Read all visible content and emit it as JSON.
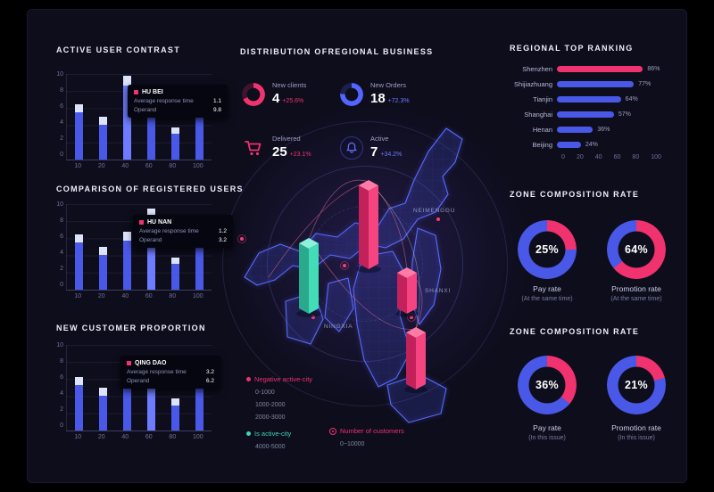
{
  "colors": {
    "pink": "#f0326e",
    "blue": "#4a58e8",
    "teal": "#3ed6b5",
    "violet": "#6b7bff"
  },
  "chart_data": [
    {
      "id": "active-user-contrast",
      "type": "bar",
      "title": "ACTIVE USER CONTRAST",
      "categories": [
        "10",
        "20",
        "40",
        "60",
        "80",
        "100"
      ],
      "values": [
        6.5,
        5,
        9.8,
        8,
        3.8,
        6.4
      ],
      "cap_values": [
        1,
        0.9,
        1.2,
        1.1,
        0.8,
        1
      ],
      "highlight": 2,
      "yticks": [
        10,
        8,
        6,
        4,
        2,
        0
      ],
      "ylim": [
        0,
        10
      ],
      "xlabel": "",
      "ylabel": "",
      "grid": true,
      "tooltip": {
        "city": "HU BEI",
        "rows": [
          {
            "label": "Average response time",
            "value": "1.1"
          },
          {
            "label": "Operand",
            "value": "9.8"
          }
        ]
      }
    },
    {
      "id": "comparison-of-registered-users",
      "type": "bar",
      "title": "COMPARISON OF REGISTERED USERS",
      "categories": [
        "10",
        "20",
        "40",
        "60",
        "80",
        "100"
      ],
      "values": [
        6.5,
        5,
        6.8,
        9.5,
        3.8,
        6.4
      ],
      "cap_values": [
        1,
        0.9,
        1,
        1.2,
        0.8,
        1
      ],
      "highlight": 3,
      "yticks": [
        10,
        8,
        6,
        4,
        2,
        0
      ],
      "ylim": [
        0,
        10
      ],
      "xlabel": "",
      "ylabel": "",
      "grid": true,
      "tooltip": {
        "city": "HU NAN",
        "rows": [
          {
            "label": "Average response time",
            "value": "1.2"
          },
          {
            "label": "Operand",
            "value": "3.2"
          }
        ]
      }
    },
    {
      "id": "new-customer-proportion",
      "type": "bar",
      "title": "NEW CUSTOMER PROPORTION",
      "categories": [
        "10",
        "20",
        "40",
        "60",
        "80",
        "100"
      ],
      "values": [
        6.3,
        5,
        6.6,
        7.8,
        3.7,
        6.3
      ],
      "cap_values": [
        1,
        0.9,
        1,
        1.1,
        0.8,
        1
      ],
      "highlight": 3,
      "yticks": [
        10,
        8,
        6,
        4,
        2,
        0
      ],
      "ylim": [
        0,
        10
      ],
      "xlabel": "",
      "ylabel": "",
      "grid": true,
      "tooltip": {
        "city": "QING DAO",
        "rows": [
          {
            "label": "Average response time",
            "value": "3.2"
          },
          {
            "label": "Operand",
            "value": "6.2"
          }
        ]
      }
    },
    {
      "id": "regional-top-ranking",
      "type": "bar",
      "orientation": "horizontal",
      "title": "REGIONAL TOP RANKING",
      "categories": [
        "Shenzhen",
        "Shijiazhuang",
        "Tianjin",
        "Shanghai",
        "Henan",
        "Beijing"
      ],
      "values": [
        86,
        77,
        64,
        57,
        36,
        24
      ],
      "value_labels": [
        "86%",
        "77%",
        "64%",
        "57%",
        "36%",
        "24%"
      ],
      "bar_colors": [
        "pink",
        "blue",
        "blue",
        "blue",
        "blue",
        "blue"
      ],
      "xticks": [
        0,
        20,
        40,
        60,
        80,
        100
      ],
      "xlim": [
        0,
        100
      ],
      "legend_position": "none"
    },
    {
      "id": "zone-composition-rate-same-time",
      "type": "pie",
      "title": "ZONE COMPOSITION RATE",
      "donuts": [
        {
          "pct": 25,
          "pct_label": "25%",
          "label": "Pay rate",
          "sub": "(At the same time)"
        },
        {
          "pct": 64,
          "pct_label": "64%",
          "label": "Promotion rate",
          "sub": "(At the same time)"
        }
      ]
    },
    {
      "id": "zone-composition-rate-this-issue",
      "type": "pie",
      "title": "ZONE COMPOSITION RATE",
      "donuts": [
        {
          "pct": 36,
          "pct_label": "36%",
          "label": "Pay rate",
          "sub": "(In this issue)"
        },
        {
          "pct": 21,
          "pct_label": "21%",
          "label": "Promotion rate",
          "sub": "(In this issue)"
        }
      ]
    }
  ],
  "center": {
    "title": "DISTRIBUTION OFREGIONAL BUSINESS",
    "kpis": [
      {
        "icon": "clients-donut-icon",
        "label": "New clients",
        "value": "4",
        "delta": "+25.6%",
        "accent": "pink"
      },
      {
        "icon": "orders-donut-icon",
        "label": "New Orders",
        "value": "18",
        "delta": "+72.3%",
        "accent": "blue"
      },
      {
        "icon": "cart-icon",
        "label": "Delivered",
        "value": "25",
        "delta": "+23.1%",
        "accent": "pink"
      },
      {
        "icon": "bell-icon",
        "label": "Active",
        "value": "7",
        "delta": "+34.2%",
        "accent": "blue"
      }
    ],
    "map_labels": [
      {
        "text": "NEIMENGGU"
      },
      {
        "text": "SHANXI"
      },
      {
        "text": "NINGXIA"
      }
    ],
    "legend": {
      "negative_title": "Negative active-city",
      "negative_ranges": [
        "0-1000",
        "1000-2000",
        "2000-3000"
      ],
      "active_title": "Is active-city",
      "active_range": "4000-5000",
      "customers_title": "Number of customers",
      "customers_range": "0~10000"
    }
  }
}
